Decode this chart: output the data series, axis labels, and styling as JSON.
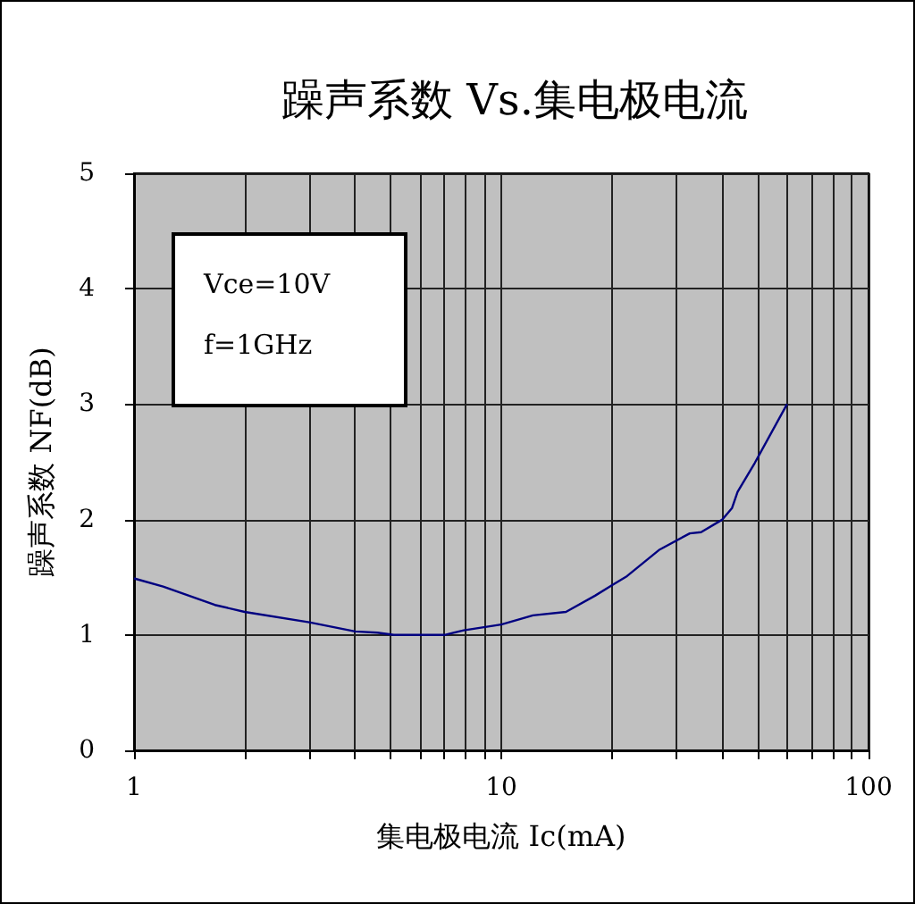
{
  "chart_data": {
    "type": "line",
    "title": "躁声系数 Vs.集电极电流",
    "xlabel": "集电极电流 Ic(mA)",
    "ylabel": "躁声系数 NF(dB)",
    "annotations": [
      "Vce=10V",
      "f=1GHz"
    ],
    "log": "x",
    "grid": true,
    "marker": "none",
    "line_style": "solid",
    "xlim": [
      1,
      100
    ],
    "xticks": [
      1,
      {
        "value": 2,
        "label": null
      },
      {
        "value": 3,
        "label": null
      },
      {
        "value": 4,
        "label": null
      },
      {
        "value": 5,
        "label": null
      },
      {
        "value": 6,
        "label": null
      },
      {
        "value": 7,
        "label": null
      },
      {
        "value": 8,
        "label": null
      },
      {
        "value": 9,
        "label": null
      },
      10,
      {
        "value": 20,
        "label": null
      },
      {
        "value": 30,
        "label": null
      },
      {
        "value": 40,
        "label": null
      },
      {
        "value": 50,
        "label": null
      },
      {
        "value": 60,
        "label": null
      },
      {
        "value": 70,
        "label": null
      },
      {
        "value": 80,
        "label": null
      },
      {
        "value": 90,
        "label": null
      },
      100
    ],
    "ylim": [
      0,
      5
    ],
    "yticks": [
      0,
      1,
      2,
      3,
      4,
      5
    ],
    "series": [
      {
        "color": "#000080",
        "x": [
          1,
          1.2,
          1.66,
          2,
          3,
          4,
          4.6,
          5.1,
          7,
          7.9,
          10,
          12.2,
          15,
          18,
          20,
          22,
          27,
          32.6,
          35,
          40,
          42.5,
          44,
          49,
          60
        ],
        "values": [
          1.49,
          1.42,
          1.26,
          1.2,
          1.11,
          1.03,
          1.02,
          1.0,
          1.0,
          1.04,
          1.09,
          1.17,
          1.2,
          1.34,
          1.43,
          1.51,
          1.74,
          1.88,
          1.89,
          2.0,
          2.1,
          2.24,
          2.49,
          3.0
        ]
      }
    ]
  }
}
